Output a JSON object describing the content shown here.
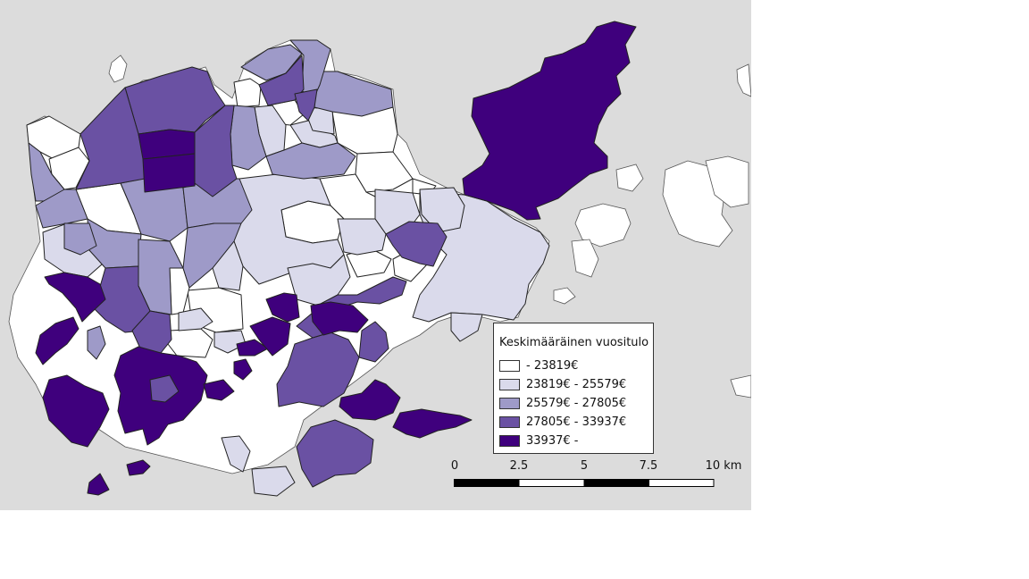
{
  "map": {
    "background_color": "#dcdcdc",
    "class_colors": [
      "#ffffff",
      "#dadaeb",
      "#9e9ac8",
      "#6a51a3",
      "#3f007d"
    ]
  },
  "legend": {
    "title": "Keskimääräinen vuositulo",
    "items": [
      {
        "label": "- 23819€",
        "color": "#ffffff"
      },
      {
        "label": "23819€ - 25579€",
        "color": "#dadaeb"
      },
      {
        "label": "25579€ - 27805€",
        "color": "#9e9ac8"
      },
      {
        "label": "27805€ - 33937€",
        "color": "#6a51a3"
      },
      {
        "label": "33937€ -",
        "color": "#3f007d"
      }
    ]
  },
  "scalebar": {
    "labels": [
      "0",
      "2.5",
      "5",
      "7.5",
      "10 km"
    ]
  }
}
